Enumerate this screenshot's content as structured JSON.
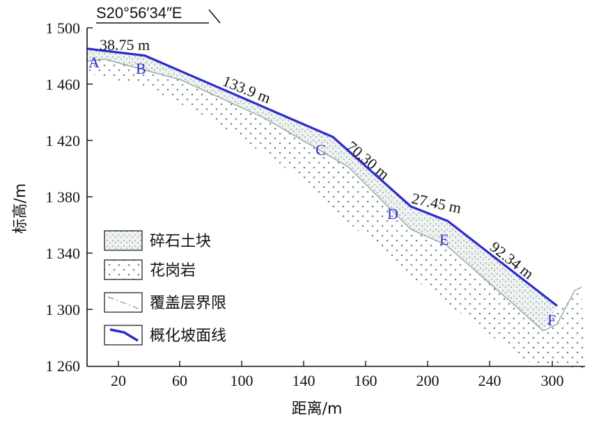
{
  "bearing": "S20°56′34″E",
  "axes": {
    "ylabel": "标高/m",
    "xlabel": "距离/m",
    "y_ticks": [
      "1 500",
      "1 460",
      "1 420",
      "1 380",
      "1 340",
      "1 300",
      "1 260"
    ],
    "x_ticks": [
      "20",
      "60",
      "100",
      "140",
      "160",
      "200",
      "240",
      "300"
    ]
  },
  "points": [
    {
      "id": "A",
      "label": "A"
    },
    {
      "id": "B",
      "label": "B"
    },
    {
      "id": "C",
      "label": "C"
    },
    {
      "id": "D",
      "label": "D"
    },
    {
      "id": "E",
      "label": "E"
    },
    {
      "id": "F",
      "label": "F"
    }
  ],
  "segments": [
    {
      "from": "A",
      "to": "B",
      "length": "38.75 m"
    },
    {
      "from": "B",
      "to": "C",
      "length": "133.9 m"
    },
    {
      "from": "C",
      "to": "D",
      "length": "70.30 m"
    },
    {
      "from": "D",
      "to": "E",
      "length": "27.45 m"
    },
    {
      "from": "E",
      "to": "F",
      "length": "92.34 m"
    }
  ],
  "legend": [
    {
      "label": "碎石土块",
      "type": "gravel-soil"
    },
    {
      "label": "花岗岩",
      "type": "granite"
    },
    {
      "label": "覆盖层界限",
      "type": "overburden-boundary"
    },
    {
      "label": "概化坡面线",
      "type": "generalized-slope-line"
    }
  ],
  "colors": {
    "slope_line": "#2a2ad0",
    "point_label": "#2a2ad0",
    "boundary": "#9aa8a8",
    "hatch": "#6f8a8a"
  }
}
